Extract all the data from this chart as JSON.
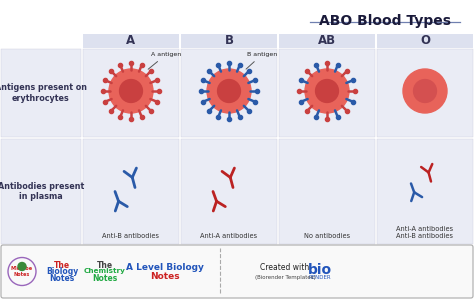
{
  "title": "ABO Blood Types",
  "bg_color": "#ffffff",
  "grid_bg": "#eaecf5",
  "header_bg": "#dde1ef",
  "row_labels": [
    "Antigens present on\nerythrocytes",
    "Antibodies present\nin plasma"
  ],
  "col_labels": [
    "A",
    "B",
    "AB",
    "O"
  ],
  "antibody_labels": [
    "Anti-B antibodies",
    "Anti-A antibodies",
    "No antibodies",
    "Anti-A antibodies\nAnti-B antibodies"
  ],
  "antigen_labels": [
    "A antigen",
    "B antigen"
  ],
  "rbc_color": "#e8635a",
  "rbc_inner_color": "#c94040",
  "rbc_o_color": "#e8635a",
  "rbc_o_inner": "#d45050",
  "rbc_spike_red": "#c94040",
  "rbc_spike_blue": "#2a5aa8",
  "ab_blue": "#2a5aa8",
  "ab_red": "#bb2222",
  "footer_bg": "#f9f9f9",
  "label_color": "#333355",
  "title_color": "#1a1a3a",
  "underline_color": "#7080b0"
}
